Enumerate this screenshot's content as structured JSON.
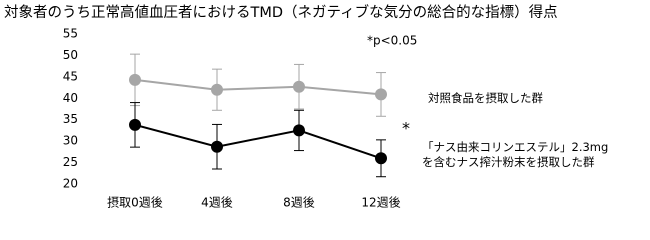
{
  "chart_data": {
    "type": "line",
    "title": "対象者のうち正常高値血圧者におけるTMD（ネガティブな気分の総合的な指標）得点",
    "categories": [
      "摂取0週後",
      "4週後",
      "8週後",
      "12週後"
    ],
    "series": [
      {
        "name": "対照食品を摂取した群",
        "color": "#a6a6a6",
        "values": [
          44.3,
          42.0,
          42.7,
          40.9
        ],
        "errors": [
          6.0,
          4.8,
          5.2,
          5.1
        ]
      },
      {
        "name": "「ナス由来コリンエステル」2.3mgを含むナス搾汁粉末を摂取した群",
        "color": "#000000",
        "values": [
          33.8,
          28.7,
          32.5,
          26.0
        ],
        "errors": [
          5.2,
          5.2,
          4.7,
          4.3
        ]
      }
    ],
    "ylim": [
      20,
      55
    ],
    "yticks": [
      20,
      25,
      30,
      35,
      40,
      45,
      50,
      55
    ],
    "annotations": [
      "*p<0.05",
      "*"
    ]
  }
}
